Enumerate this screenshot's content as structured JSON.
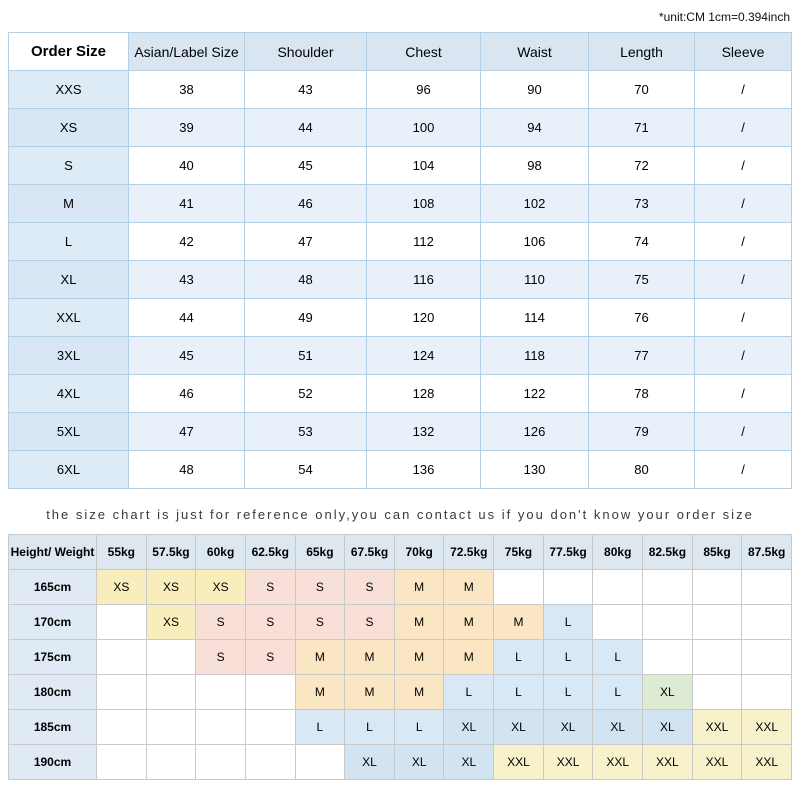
{
  "unit_note": "*unit:CM 1cm=0.394inch",
  "reference_note": "the size chart is just for reference only,you can contact us if you don't know your order size",
  "size_table": {
    "columns": [
      "Order Size",
      "Asian/Label Size",
      "Shoulder",
      "Chest",
      "Waist",
      "Length",
      "Sleeve"
    ],
    "rows": [
      [
        "XXS",
        "38",
        "43",
        "96",
        "90",
        "70",
        "/"
      ],
      [
        "XS",
        "39",
        "44",
        "100",
        "94",
        "71",
        "/"
      ],
      [
        "S",
        "40",
        "45",
        "104",
        "98",
        "72",
        "/"
      ],
      [
        "M",
        "41",
        "46",
        "108",
        "102",
        "73",
        "/"
      ],
      [
        "L",
        "42",
        "47",
        "112",
        "106",
        "74",
        "/"
      ],
      [
        "XL",
        "43",
        "48",
        "116",
        "110",
        "75",
        "/"
      ],
      [
        "XXL",
        "44",
        "49",
        "120",
        "114",
        "76",
        "/"
      ],
      [
        "3XL",
        "45",
        "51",
        "124",
        "118",
        "77",
        "/"
      ],
      [
        "4XL",
        "46",
        "52",
        "128",
        "122",
        "78",
        "/"
      ],
      [
        "5XL",
        "47",
        "53",
        "132",
        "126",
        "79",
        "/"
      ],
      [
        "6XL",
        "48",
        "54",
        "136",
        "130",
        "80",
        "/"
      ]
    ]
  },
  "height_weight_table": {
    "corner": "Height/ Weight",
    "weights": [
      "55kg",
      "57.5kg",
      "60kg",
      "62.5kg",
      "65kg",
      "67.5kg",
      "70kg",
      "72.5kg",
      "75kg",
      "77.5kg",
      "80kg",
      "82.5kg",
      "85kg",
      "87.5kg"
    ],
    "palette": {
      "XS": "#f8edbc",
      "S": "#f8e0d8",
      "M": "#fae6c2",
      "L": "#d9e8f5",
      "XL": "#d2e4f2",
      "XL*": "#dcebd2",
      "XXL": "#f8f2cc"
    },
    "rows": [
      {
        "height": "165cm",
        "cells": [
          "XS",
          "XS",
          "XS",
          "S",
          "S",
          "S",
          "M",
          "M",
          "",
          "",
          "",
          "",
          "",
          ""
        ]
      },
      {
        "height": "170cm",
        "cells": [
          "",
          "XS",
          "S",
          "S",
          "S",
          "S",
          "M",
          "M",
          "M",
          "L",
          "",
          "",
          "",
          ""
        ]
      },
      {
        "height": "175cm",
        "cells": [
          "",
          "",
          "S",
          "S",
          "M",
          "M",
          "M",
          "M",
          "L",
          "L",
          "L",
          "",
          "",
          ""
        ]
      },
      {
        "height": "180cm",
        "cells": [
          "",
          "",
          "",
          "",
          "M",
          "M",
          "M",
          "L",
          "L",
          "L",
          "L",
          "XL*",
          "",
          ""
        ]
      },
      {
        "height": "185cm",
        "cells": [
          "",
          "",
          "",
          "",
          "L",
          "L",
          "L",
          "XL",
          "XL",
          "XL",
          "XL",
          "XL",
          "XXL",
          "XXL"
        ]
      },
      {
        "height": "190cm",
        "cells": [
          "",
          "",
          "",
          "",
          "",
          "XL",
          "XL",
          "XL",
          "XXL",
          "XXL",
          "XXL",
          "XXL",
          "XXL",
          "XXL"
        ]
      }
    ]
  }
}
